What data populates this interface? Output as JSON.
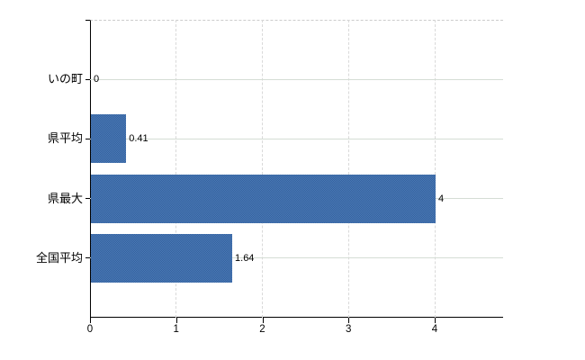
{
  "chart_data": {
    "type": "bar",
    "orientation": "horizontal",
    "title": "",
    "xlabel": "",
    "ylabel": "",
    "categories": [
      "いの町",
      "県平均",
      "県最大",
      "全国平均"
    ],
    "values": [
      0,
      0.41,
      4,
      1.64
    ],
    "value_labels": [
      "0",
      "0.41",
      "4",
      "1.64"
    ],
    "x_ticks": [
      0,
      1,
      2,
      3,
      4
    ],
    "x_tick_labels": [
      "0",
      "1",
      "2",
      "3",
      "4"
    ],
    "xlim": [
      0,
      4.8
    ],
    "grid": true,
    "legend": false,
    "colors": {
      "bar_base": "#35619c",
      "bar_light": "#4a7ab8",
      "hgrid": "#d5ddd5",
      "vgrid": "#d9d9d9",
      "top_border": "#cccccc",
      "axis": "#000000",
      "text": "#000000",
      "background": "#ffffff"
    }
  }
}
